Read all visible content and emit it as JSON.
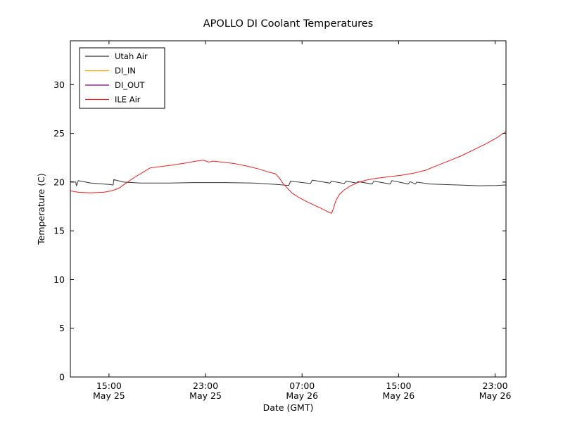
{
  "title": "APOLLO DI Coolant Temperatures",
  "axes": {
    "xlabel": "Date (GMT)",
    "ylabel": "Temperature (C)",
    "y_ticks": [
      0,
      5,
      10,
      15,
      20,
      25,
      30
    ],
    "x_ticks": [
      {
        "hour": 15,
        "time": "15:00",
        "date": "May 25"
      },
      {
        "hour": 23,
        "time": "23:00",
        "date": "May 25"
      },
      {
        "hour": 31,
        "time": "07:00",
        "date": "May 26"
      },
      {
        "hour": 39,
        "time": "15:00",
        "date": "May 26"
      },
      {
        "hour": 47,
        "time": "23:00",
        "date": "May 26"
      }
    ]
  },
  "legend": {
    "position": "upper-left",
    "entries": [
      {
        "label": "Utah Air",
        "color": "#333333"
      },
      {
        "label": "DI_IN",
        "color": "#ffa500"
      },
      {
        "label": "DI_OUT",
        "color": "#800080"
      },
      {
        "label": "ILE Air",
        "color": "#ee2020"
      }
    ]
  },
  "chart_data": {
    "type": "line",
    "title": "APOLLO DI Coolant Temperatures",
    "xlabel": "Date (GMT)",
    "ylabel": "Temperature (C)",
    "x_unit": "hours since May 25 00:00 GMT",
    "xlim": [
      11.8,
      47.9
    ],
    "ylim": [
      0,
      34.5
    ],
    "grid": false,
    "legend_position": "upper-left",
    "series": [
      {
        "name": "Utah Air",
        "color": "#333333",
        "opacity": 1,
        "points": [
          [
            11.8,
            20.05
          ],
          [
            12.25,
            20.0
          ],
          [
            12.3,
            19.6
          ],
          [
            12.45,
            20.15
          ],
          [
            13.5,
            19.9
          ],
          [
            15.1,
            19.75
          ],
          [
            15.35,
            19.7
          ],
          [
            15.4,
            20.25
          ],
          [
            16.2,
            20.0
          ],
          [
            17.6,
            19.9
          ],
          [
            20.0,
            19.9
          ],
          [
            22.0,
            19.95
          ],
          [
            24.6,
            19.95
          ],
          [
            27.0,
            19.9
          ],
          [
            29.0,
            19.75
          ],
          [
            29.9,
            19.65
          ],
          [
            30.05,
            20.1
          ],
          [
            31.7,
            19.85
          ],
          [
            31.85,
            20.2
          ],
          [
            33.3,
            19.9
          ],
          [
            33.45,
            20.1
          ],
          [
            34.5,
            19.85
          ],
          [
            34.65,
            20.1
          ],
          [
            35.5,
            19.9
          ],
          [
            35.65,
            20.05
          ],
          [
            36.8,
            19.8
          ],
          [
            36.95,
            20.1
          ],
          [
            38.3,
            19.8
          ],
          [
            38.45,
            20.15
          ],
          [
            39.8,
            19.8
          ],
          [
            39.95,
            20.05
          ],
          [
            40.4,
            19.8
          ],
          [
            40.5,
            20.0
          ],
          [
            41.6,
            19.8
          ],
          [
            43.9,
            19.7
          ],
          [
            45.7,
            19.62
          ],
          [
            47.1,
            19.65
          ],
          [
            47.9,
            19.7
          ]
        ]
      },
      {
        "name": "DI_IN",
        "color": "#ffa500",
        "opacity": 0.55,
        "points": [
          [
            11.8,
            0
          ],
          [
            47.9,
            0
          ]
        ]
      },
      {
        "name": "DI_OUT",
        "color": "#800080",
        "opacity": 0.55,
        "points": [
          [
            11.8,
            0
          ],
          [
            47.9,
            0
          ]
        ]
      },
      {
        "name": "ILE Air",
        "color": "#ee2020",
        "opacity": 1,
        "points": [
          [
            11.8,
            19.1
          ],
          [
            12.5,
            18.95
          ],
          [
            13.5,
            18.9
          ],
          [
            14.5,
            18.95
          ],
          [
            15.2,
            19.1
          ],
          [
            15.8,
            19.35
          ],
          [
            16.3,
            19.8
          ],
          [
            17.0,
            20.4
          ],
          [
            17.8,
            21.0
          ],
          [
            18.4,
            21.45
          ],
          [
            19.3,
            21.6
          ],
          [
            20.3,
            21.75
          ],
          [
            21.3,
            21.95
          ],
          [
            22.2,
            22.15
          ],
          [
            22.8,
            22.25
          ],
          [
            23.3,
            22.05
          ],
          [
            23.6,
            22.15
          ],
          [
            24.4,
            22.05
          ],
          [
            25.4,
            21.9
          ],
          [
            26.4,
            21.65
          ],
          [
            27.4,
            21.35
          ],
          [
            28.3,
            21.0
          ],
          [
            28.8,
            20.85
          ],
          [
            29.1,
            20.45
          ],
          [
            29.4,
            19.9
          ],
          [
            29.8,
            19.35
          ],
          [
            30.2,
            18.85
          ],
          [
            30.7,
            18.45
          ],
          [
            31.3,
            18.05
          ],
          [
            31.9,
            17.7
          ],
          [
            32.5,
            17.35
          ],
          [
            33.0,
            17.05
          ],
          [
            33.3,
            16.85
          ],
          [
            33.45,
            16.8
          ],
          [
            33.6,
            17.3
          ],
          [
            33.8,
            18.1
          ],
          [
            34.1,
            18.75
          ],
          [
            34.5,
            19.2
          ],
          [
            35.0,
            19.6
          ],
          [
            35.6,
            19.95
          ],
          [
            36.3,
            20.2
          ],
          [
            37.2,
            20.4
          ],
          [
            38.2,
            20.55
          ],
          [
            39.2,
            20.7
          ],
          [
            40.2,
            20.9
          ],
          [
            41.2,
            21.2
          ],
          [
            42.2,
            21.7
          ],
          [
            43.2,
            22.2
          ],
          [
            44.2,
            22.7
          ],
          [
            45.2,
            23.3
          ],
          [
            46.2,
            23.9
          ],
          [
            47.2,
            24.6
          ],
          [
            47.9,
            25.2
          ]
        ]
      }
    ]
  }
}
